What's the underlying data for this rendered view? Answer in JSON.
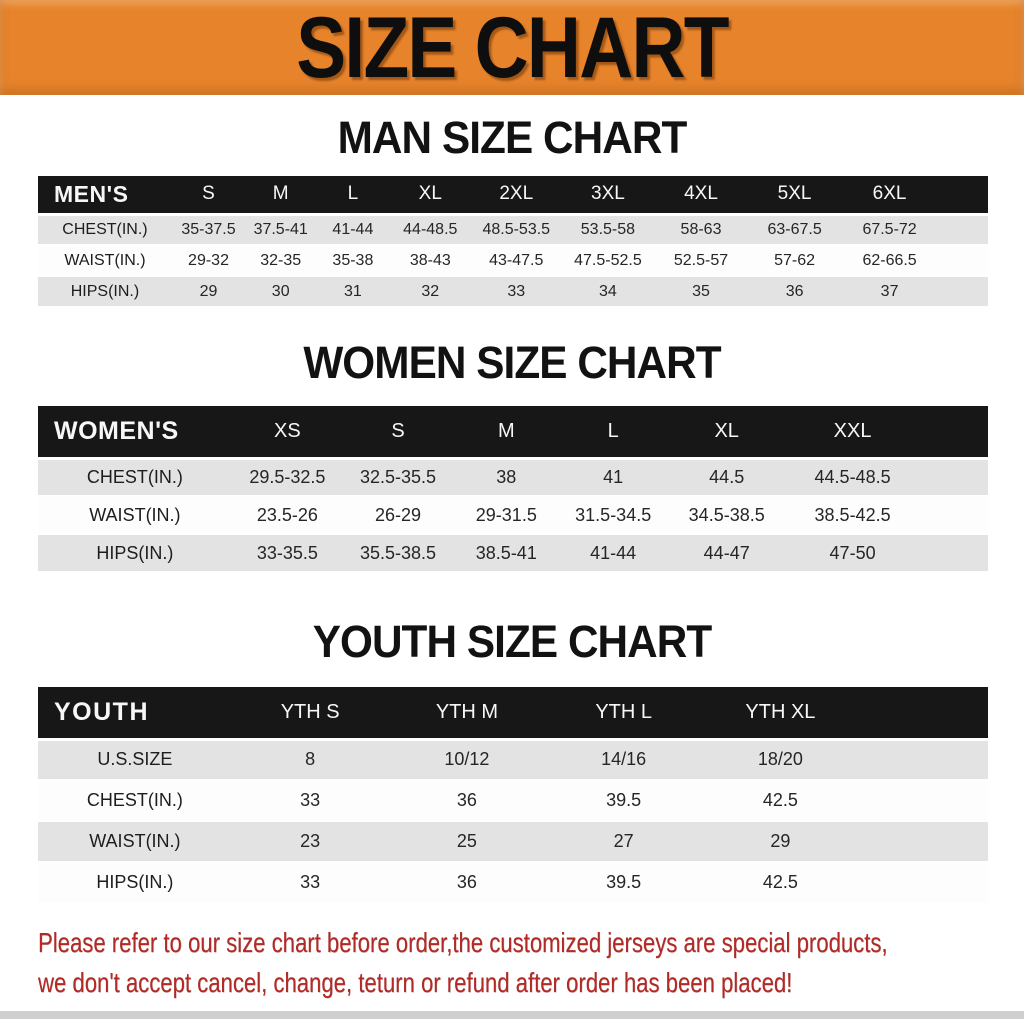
{
  "banner": {
    "title": "SIZE CHART",
    "bg_color": "#E6832B"
  },
  "headings": {
    "men": "MAN SIZE CHART",
    "women": "WOMEN SIZE CHART",
    "youth": "YOUTH SIZE CHART"
  },
  "chart_data": [
    {
      "type": "table",
      "title": "MAN SIZE CHART",
      "columns": [
        "MEN'S",
        "S",
        "M",
        "L",
        "XL",
        "2XL",
        "3XL",
        "4XL",
        "5XL",
        "6XL"
      ],
      "rows": [
        [
          "CHEST(IN.)",
          "35-37.5",
          "37.5-41",
          "41-44",
          "44-48.5",
          "48.5-53.5",
          "53.5-58",
          "58-63",
          "63-67.5",
          "67.5-72"
        ],
        [
          "WAIST(IN.)",
          "29-32",
          "32-35",
          "35-38",
          "38-43",
          "43-47.5",
          "47.5-52.5",
          "52.5-57",
          "57-62",
          "62-66.5"
        ],
        [
          "HIPS(IN.)",
          "29",
          "30",
          "31",
          "32",
          "33",
          "34",
          "35",
          "36",
          "37"
        ]
      ]
    },
    {
      "type": "table",
      "title": "WOMEN SIZE CHART",
      "columns": [
        "WOMEN'S",
        "XS",
        "S",
        "M",
        "L",
        "XL",
        "XXL"
      ],
      "rows": [
        [
          "CHEST(IN.)",
          "29.5-32.5",
          "32.5-35.5",
          "38",
          "41",
          "44.5",
          "44.5-48.5"
        ],
        [
          "WAIST(IN.)",
          "23.5-26",
          "26-29",
          "29-31.5",
          "31.5-34.5",
          "34.5-38.5",
          "38.5-42.5"
        ],
        [
          "HIPS(IN.)",
          "33-35.5",
          "35.5-38.5",
          "38.5-41",
          "41-44",
          "44-47",
          "47-50"
        ]
      ]
    },
    {
      "type": "table",
      "title": "YOUTH SIZE CHART",
      "columns": [
        "YOUTH",
        "YTH S",
        "YTH M",
        "YTH L",
        "YTH XL"
      ],
      "rows": [
        [
          "U.S.SIZE",
          "8",
          "10/12",
          "14/16",
          "18/20"
        ],
        [
          "CHEST(IN.)",
          "33",
          "36",
          "39.5",
          "42.5"
        ],
        [
          "WAIST(IN.)",
          "23",
          "25",
          "27",
          "29"
        ],
        [
          "HIPS(IN.)",
          "33",
          "36",
          "39.5",
          "42.5"
        ]
      ]
    }
  ],
  "disclaimer": {
    "line1": "Please refer to our size chart before order,the customized jerseys are special products,",
    "line2": "we don't accept cancel, change, teturn or refund after order has been placed!",
    "color": "#B12A26"
  }
}
